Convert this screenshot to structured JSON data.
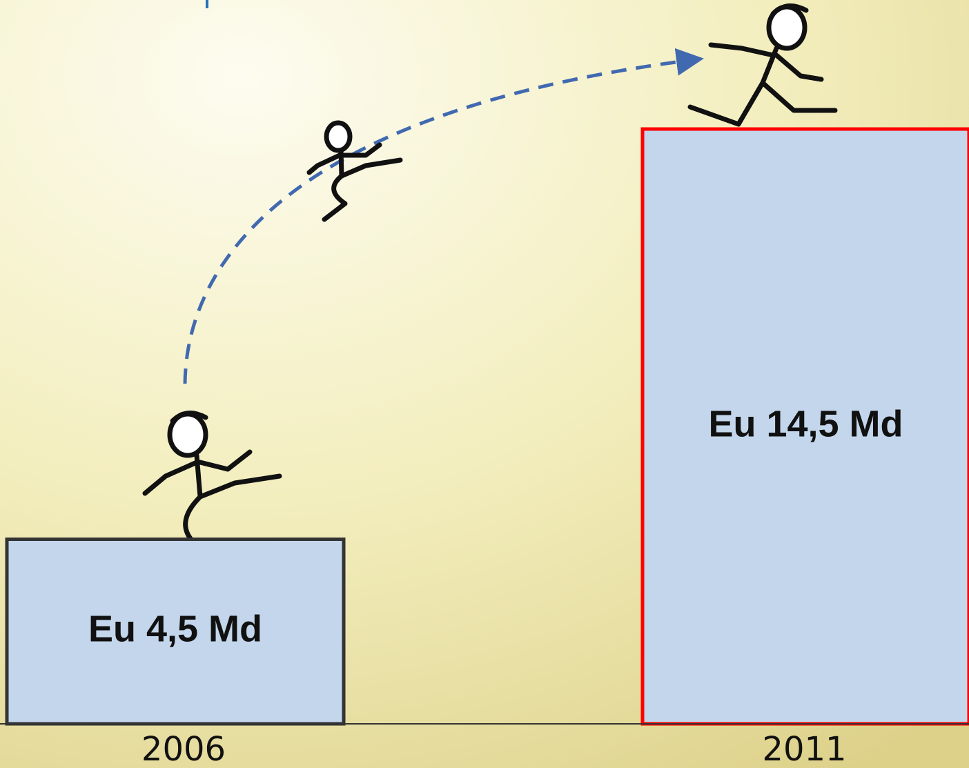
{
  "chart_data": {
    "type": "bar",
    "categories": [
      "2006",
      "2011"
    ],
    "values": [
      4.5,
      14.5
    ],
    "value_labels": [
      "Eu 4,5 Md",
      "Eu 14,5 Md"
    ],
    "color": "#c3d6ec",
    "border_colors": [
      "#333333",
      "#ff0000"
    ]
  }
}
